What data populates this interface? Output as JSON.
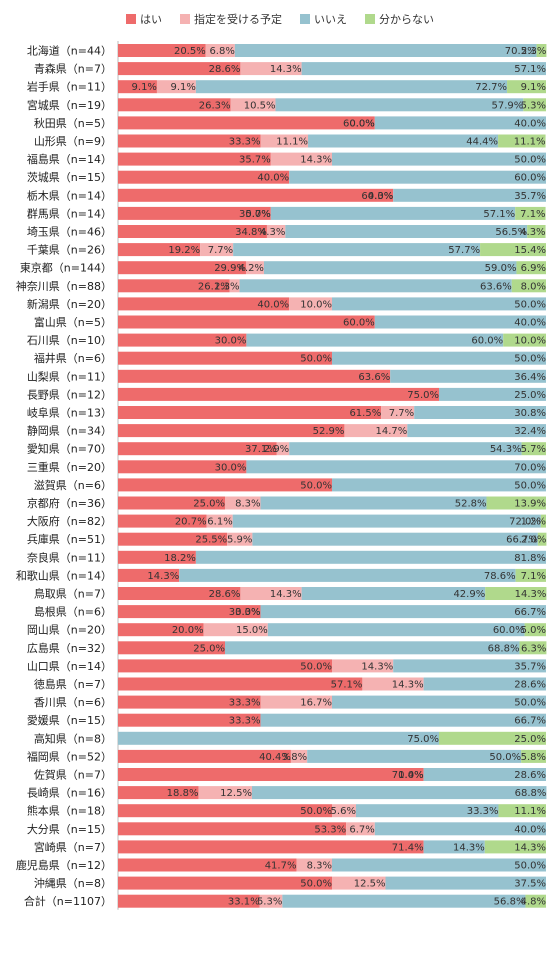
{
  "colors": {
    "yes": "#ee6b6b",
    "planned": "#f5b2b2",
    "no": "#96c2cf",
    "unknown": "#b0d98c"
  },
  "chart_data": {
    "type": "bar",
    "orientation": "horizontal",
    "stacked": true,
    "xlim": [
      0,
      100
    ],
    "unit": "%",
    "legend_position": "top",
    "categories": [
      "北海道（n=44）",
      "青森県（n=7）",
      "岩手県（n=11）",
      "宮城県（n=19）",
      "秋田県（n=5）",
      "山形県（n=9）",
      "福島県（n=14）",
      "茨城県（n=15）",
      "栃木県（n=14）",
      "群馬県（n=14）",
      "埼玉県（n=46）",
      "千葉県（n=26）",
      "東京都（n=144）",
      "神奈川県（n=88）",
      "新潟県（n=20）",
      "富山県（n=5）",
      "石川県（n=10）",
      "福井県（n=6）",
      "山梨県（n=11）",
      "長野県（n=12）",
      "岐阜県（n=13）",
      "静岡県（n=34）",
      "愛知県（n=70）",
      "三重県（n=20）",
      "滋賀県（n=6）",
      "京都府（n=36）",
      "大阪府（n=82）",
      "兵庫県（n=51）",
      "奈良県（n=11）",
      "和歌山県（n=14）",
      "鳥取県（n=7）",
      "島根県（n=6）",
      "岡山県（n=20）",
      "広島県（n=32）",
      "山口県（n=14）",
      "徳島県（n=7）",
      "香川県（n=6）",
      "愛媛県（n=15）",
      "高知県（n=8）",
      "福岡県（n=52）",
      "佐賀県（n=7）",
      "長崎県（n=16）",
      "熊本県（n=18）",
      "大分県（n=15）",
      "宮崎県（n=7）",
      "鹿児島県（n=12）",
      "沖縄県（n=8）",
      "合計（n=1107）"
    ],
    "series": [
      {
        "name": "はい",
        "colorKey": "yes",
        "values": [
          20.5,
          28.6,
          9.1,
          26.3,
          60.0,
          33.3,
          35.7,
          40.0,
          64.3,
          35.7,
          34.8,
          19.2,
          29.9,
          26.1,
          40.0,
          60.0,
          30.0,
          50.0,
          63.6,
          75.0,
          61.5,
          52.9,
          37.1,
          30.0,
          50.0,
          25.0,
          20.7,
          25.5,
          18.2,
          14.3,
          28.6,
          33.3,
          20.0,
          25.0,
          50.0,
          57.1,
          33.3,
          33.3,
          null,
          40.4,
          71.4,
          18.8,
          50.0,
          53.3,
          71.4,
          41.7,
          50.0,
          33.1
        ]
      },
      {
        "name": "指定を受ける予定",
        "colorKey": "planned",
        "values": [
          6.8,
          14.3,
          9.1,
          10.5,
          0.0,
          11.1,
          14.3,
          null,
          0.0,
          0.0,
          4.3,
          7.7,
          4.2,
          2.3,
          10.0,
          null,
          null,
          null,
          null,
          null,
          7.7,
          14.7,
          2.9,
          null,
          null,
          8.3,
          6.1,
          5.9,
          null,
          null,
          14.3,
          0.0,
          15.0,
          null,
          14.3,
          14.3,
          16.7,
          null,
          null,
          3.8,
          0.0,
          12.5,
          5.6,
          6.7,
          null,
          8.3,
          12.5,
          5.3
        ]
      },
      {
        "name": "いいえ",
        "colorKey": "no",
        "values": [
          70.5,
          57.1,
          72.7,
          57.9,
          40.0,
          44.4,
          50.0,
          60.0,
          35.7,
          57.1,
          56.5,
          57.7,
          59.0,
          63.6,
          50.0,
          40.0,
          60.0,
          50.0,
          36.4,
          25.0,
          30.8,
          32.4,
          54.3,
          70.0,
          50.0,
          52.8,
          72.0,
          66.7,
          81.8,
          78.6,
          42.9,
          66.7,
          60.0,
          68.8,
          35.7,
          28.6,
          50.0,
          66.7,
          75.0,
          50.0,
          28.6,
          68.8,
          33.3,
          40.0,
          14.3,
          50.0,
          37.5,
          56.8
        ]
      },
      {
        "name": "分からない",
        "colorKey": "unknown",
        "values": [
          2.3,
          null,
          9.1,
          5.3,
          null,
          11.1,
          null,
          null,
          null,
          7.1,
          4.3,
          15.4,
          6.9,
          8.0,
          null,
          null,
          10.0,
          null,
          null,
          null,
          null,
          null,
          5.7,
          null,
          null,
          13.9,
          1.2,
          2.0,
          null,
          7.1,
          14.3,
          null,
          5.0,
          6.3,
          null,
          null,
          null,
          null,
          25.0,
          5.8,
          null,
          null,
          11.1,
          null,
          14.3,
          null,
          null,
          4.8
        ]
      }
    ]
  }
}
